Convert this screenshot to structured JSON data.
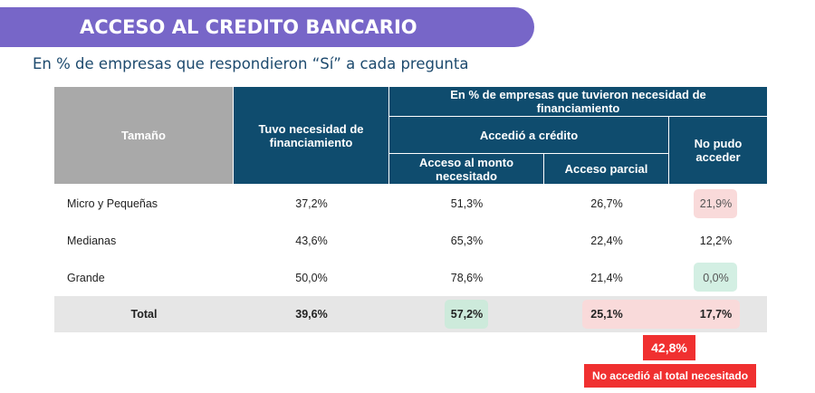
{
  "title": "ACCESO AL CREDITO BANCARIO",
  "subtitle": "En % de empresas que respondieron “Sí” a cada pregunta",
  "headers": {
    "size": "Tamaño",
    "need": "Tuvo necesidad de financiamiento",
    "group": "En % de empresas que tuvieron necesidad de financiamiento",
    "accessed": "Accedió a crédito",
    "full": "Acceso al monto necesitado",
    "partial": "Acceso parcial",
    "none": "No pudo acceder"
  },
  "rows": [
    {
      "size": "Micro y Pequeñas",
      "need": "37,2%",
      "full": "51,3%",
      "partial": "26,7%",
      "none": "21,9%"
    },
    {
      "size": "Medianas",
      "need": "43,6%",
      "full": "65,3%",
      "partial": "22,4%",
      "none": "12,2%"
    },
    {
      "size": "Grande",
      "need": "50,0%",
      "full": "78,6%",
      "partial": "21,4%",
      "none": "0,0%"
    }
  ],
  "total": {
    "size": "Total",
    "need": "39,6%",
    "full": "57,2%",
    "partial": "25,1%",
    "none": "17,7%"
  },
  "callout": {
    "value": "42,8%",
    "label": "No accedió al total necesitado"
  },
  "colors": {
    "header": "#0f4c6e",
    "banner": "#7766c8",
    "highlight_red": "#f03030",
    "pink": "#f9dada",
    "green": "#d3efe3"
  }
}
